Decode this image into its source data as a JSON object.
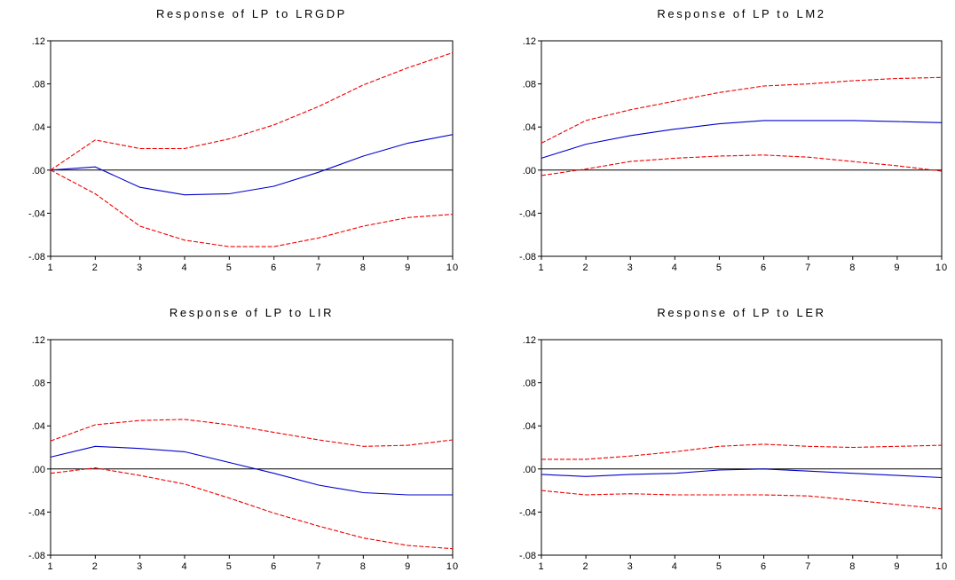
{
  "chart_data": [
    {
      "type": "line",
      "title": "Response of LP to LRGDP",
      "x": [
        1,
        2,
        3,
        4,
        5,
        6,
        7,
        8,
        9,
        10
      ],
      "x_tick_labels": [
        "1",
        "2",
        "3",
        "4",
        "5",
        "6",
        "7",
        "8",
        "9",
        "10"
      ],
      "y_tick_labels": [
        ".12",
        ".08",
        ".04",
        ".00",
        "-.04",
        "-.08"
      ],
      "ylim": [
        -0.08,
        0.12
      ],
      "zero_line": true,
      "series": [
        {
          "role": "response",
          "color": "#0000cc",
          "dashed": false,
          "values": [
            0.0,
            0.003,
            -0.016,
            -0.023,
            -0.022,
            -0.015,
            -0.002,
            0.013,
            0.025,
            0.033
          ]
        },
        {
          "role": "upper",
          "color": "#ee0000",
          "dashed": true,
          "values": [
            0.0,
            0.028,
            0.02,
            0.02,
            0.029,
            0.042,
            0.059,
            0.079,
            0.095,
            0.109
          ]
        },
        {
          "role": "lower",
          "color": "#ee0000",
          "dashed": true,
          "values": [
            0.0,
            -0.022,
            -0.052,
            -0.065,
            -0.071,
            -0.071,
            -0.063,
            -0.052,
            -0.044,
            -0.041
          ]
        }
      ]
    },
    {
      "type": "line",
      "title": "Response of LP to LM2",
      "x": [
        1,
        2,
        3,
        4,
        5,
        6,
        7,
        8,
        9,
        10
      ],
      "x_tick_labels": [
        "1",
        "2",
        "3",
        "4",
        "5",
        "6",
        "7",
        "8",
        "9",
        "10"
      ],
      "y_tick_labels": [
        ".12",
        ".08",
        ".04",
        ".00",
        "-.04",
        "-.08"
      ],
      "ylim": [
        -0.08,
        0.12
      ],
      "zero_line": true,
      "series": [
        {
          "role": "response",
          "color": "#0000cc",
          "dashed": false,
          "values": [
            0.011,
            0.024,
            0.032,
            0.038,
            0.043,
            0.046,
            0.046,
            0.046,
            0.045,
            0.044
          ]
        },
        {
          "role": "upper",
          "color": "#ee0000",
          "dashed": true,
          "values": [
            0.025,
            0.046,
            0.056,
            0.064,
            0.072,
            0.078,
            0.08,
            0.083,
            0.085,
            0.086
          ]
        },
        {
          "role": "lower",
          "color": "#ee0000",
          "dashed": true,
          "values": [
            -0.005,
            0.001,
            0.008,
            0.011,
            0.013,
            0.014,
            0.012,
            0.008,
            0.004,
            -0.001
          ]
        }
      ]
    },
    {
      "type": "line",
      "title": "Response of LP to LIR",
      "x": [
        1,
        2,
        3,
        4,
        5,
        6,
        7,
        8,
        9,
        10
      ],
      "x_tick_labels": [
        "1",
        "2",
        "3",
        "4",
        "5",
        "6",
        "7",
        "8",
        "9",
        "10"
      ],
      "y_tick_labels": [
        ".12",
        ".08",
        ".04",
        ".00",
        "-.04",
        "-.08"
      ],
      "ylim": [
        -0.08,
        0.12
      ],
      "zero_line": true,
      "series": [
        {
          "role": "response",
          "color": "#0000cc",
          "dashed": false,
          "values": [
            0.011,
            0.021,
            0.019,
            0.016,
            0.006,
            -0.004,
            -0.015,
            -0.022,
            -0.024,
            -0.024
          ]
        },
        {
          "role": "upper",
          "color": "#ee0000",
          "dashed": true,
          "values": [
            0.026,
            0.041,
            0.045,
            0.046,
            0.041,
            0.034,
            0.027,
            0.021,
            0.022,
            0.027
          ]
        },
        {
          "role": "lower",
          "color": "#ee0000",
          "dashed": true,
          "values": [
            -0.004,
            0.001,
            -0.006,
            -0.014,
            -0.027,
            -0.041,
            -0.053,
            -0.064,
            -0.071,
            -0.074
          ]
        }
      ]
    },
    {
      "type": "line",
      "title": "Response of LP to LER",
      "x": [
        1,
        2,
        3,
        4,
        5,
        6,
        7,
        8,
        9,
        10
      ],
      "x_tick_labels": [
        "1",
        "2",
        "3",
        "4",
        "5",
        "6",
        "7",
        "8",
        "9",
        "10"
      ],
      "y_tick_labels": [
        ".12",
        ".08",
        ".04",
        ".00",
        "-.04",
        "-.08"
      ],
      "ylim": [
        -0.08,
        0.12
      ],
      "zero_line": true,
      "series": [
        {
          "role": "response",
          "color": "#0000cc",
          "dashed": false,
          "values": [
            -0.005,
            -0.007,
            -0.005,
            -0.004,
            -0.001,
            0.0,
            -0.002,
            -0.004,
            -0.006,
            -0.008
          ]
        },
        {
          "role": "upper",
          "color": "#ee0000",
          "dashed": true,
          "values": [
            0.009,
            0.009,
            0.012,
            0.016,
            0.021,
            0.023,
            0.021,
            0.02,
            0.021,
            0.022
          ]
        },
        {
          "role": "lower",
          "color": "#ee0000",
          "dashed": true,
          "values": [
            -0.02,
            -0.024,
            -0.023,
            -0.024,
            -0.024,
            -0.024,
            -0.025,
            -0.029,
            -0.033,
            -0.037
          ]
        }
      ]
    }
  ]
}
